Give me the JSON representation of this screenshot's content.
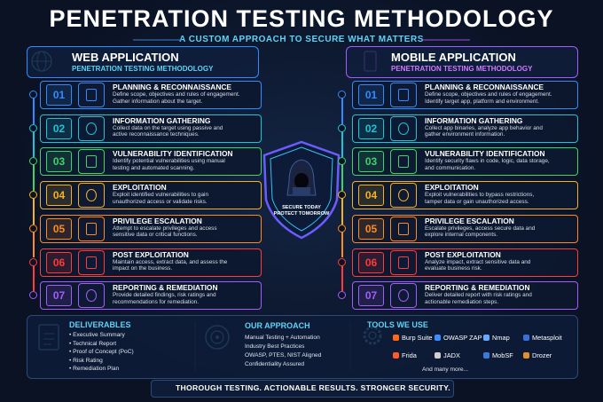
{
  "header": {
    "title": "PENETRATION TESTING METHODOLOGY",
    "subtitle": "A CUSTOM APPROACH TO SECURE WHAT MATTERS"
  },
  "web": {
    "title": "WEB APPLICATION",
    "subtitle": "PENETRATION TESTING METHODOLOGY",
    "steps": [
      {
        "num": "01",
        "title": "PLANNING & RECONNAISSANCE",
        "desc": [
          "Define scope, objectives and rules of engagement.",
          "Gather information about the target."
        ]
      },
      {
        "num": "02",
        "title": "INFORMATION GATHERING",
        "desc": [
          "Collect data on the target using passive and",
          "active reconnaissance techniques."
        ]
      },
      {
        "num": "03",
        "title": "VULNERABILITY IDENTIFICATION",
        "desc": [
          "Identify potential vulnerabilities using manual",
          "testing and automated scanning."
        ]
      },
      {
        "num": "04",
        "title": "EXPLOITATION",
        "desc": [
          "Exploit identified vulnerabilities to gain",
          "unauthorized access or validate risks."
        ]
      },
      {
        "num": "05",
        "title": "PRIVILEGE ESCALATION",
        "desc": [
          "Attempt to escalate privileges and access",
          "sensitive data or critical functions."
        ]
      },
      {
        "num": "06",
        "title": "POST EXPLOITATION",
        "desc": [
          "Maintain access, extract data, and assess the",
          "impact on the business."
        ]
      },
      {
        "num": "07",
        "title": "REPORTING & REMEDIATION",
        "desc": [
          "Provide detailed findings, risk ratings and",
          "recommendations for remediation."
        ]
      }
    ]
  },
  "mobile": {
    "title": "MOBILE APPLICATION",
    "subtitle": "PENETRATION TESTING METHODOLOGY",
    "steps": [
      {
        "num": "01",
        "title": "PLANNING & RECONNAISSANCE",
        "desc": [
          "Define scope, objectives and rules of engagement.",
          "Identify target app, platform and environment."
        ]
      },
      {
        "num": "02",
        "title": "INFORMATION GATHERING",
        "desc": [
          "Collect app binaries, analyze app behavior and",
          "gather environment information."
        ]
      },
      {
        "num": "03",
        "title": "VULNERABILITY IDENTIFICATION",
        "desc": [
          "Identify security flaws in code, logic, data storage,",
          "and communication."
        ]
      },
      {
        "num": "04",
        "title": "EXPLOITATION",
        "desc": [
          "Exploit vulnerabilities to bypass restrictions,",
          "tamper data or gain unauthorized access."
        ]
      },
      {
        "num": "05",
        "title": "PRIVILEGE ESCALATION",
        "desc": [
          "Escalate privileges, access secure data and",
          "explore internal components."
        ]
      },
      {
        "num": "06",
        "title": "POST EXPLOITATION",
        "desc": [
          "Analyze impact, extract sensitive data and",
          "evaluate business risk."
        ]
      },
      {
        "num": "07",
        "title": "REPORTING & REMEDIATION",
        "desc": [
          "Deliver detailed report with risk ratings and",
          "actionable remediation steps."
        ]
      }
    ]
  },
  "shield": {
    "lines": [
      "SECURE TODAY",
      "PROTECT TOMORROW"
    ]
  },
  "deliverables": {
    "title": "DELIVERABLES",
    "items": [
      "Executive Summary",
      "Technical Report",
      "Proof of Concept (PoC)",
      "Risk Rating",
      "Remediation Plan"
    ]
  },
  "approach": {
    "title": "OUR APPROACH",
    "items": [
      "Manual Testing + Automation",
      "Industry Best Practices",
      "OWASP, PTES, NIST Aligned",
      "Confidentiality Assured"
    ]
  },
  "tools": {
    "title": "TOOLS WE USE",
    "items": [
      "Burp Suite",
      "OWASP ZAP",
      "Nmap",
      "Metasploit",
      "Frida",
      "JADX",
      "MobSF",
      "Drozer"
    ],
    "more": "And many more..."
  },
  "footer": {
    "text": "THOROUGH TESTING. ACTIONABLE RESULTS. STRONGER SECURITY."
  }
}
